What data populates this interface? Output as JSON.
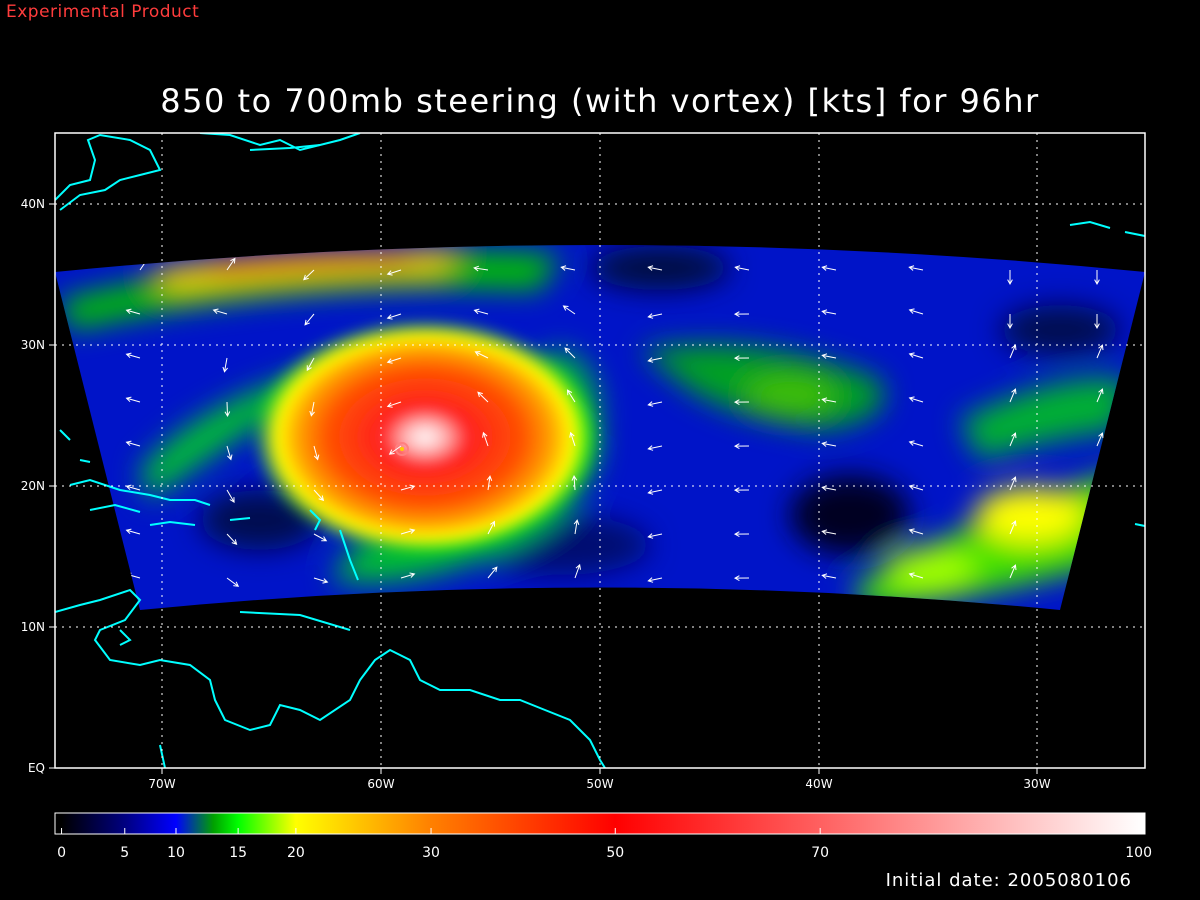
{
  "header": {
    "stamp": "Experimental Product"
  },
  "title": "850 to 700mb steering (with vortex) [kts] for 96hr",
  "footer": {
    "initial_date": "Initial date: 2005080106"
  },
  "map": {
    "lon_range": [
      -75,
      -25
    ],
    "lat_range": [
      0,
      45
    ],
    "lon_ticks": [
      {
        "value": -70,
        "label": "70W"
      },
      {
        "value": -60,
        "label": "60W"
      },
      {
        "value": -50,
        "label": "50W"
      },
      {
        "value": -40,
        "label": "40W"
      },
      {
        "value": -30,
        "label": "30W"
      }
    ],
    "lat_ticks": [
      {
        "value": 0,
        "label": "EQ"
      },
      {
        "value": 10,
        "label": "10N"
      },
      {
        "value": 20,
        "label": "20N"
      },
      {
        "value": 30,
        "label": "30N"
      },
      {
        "value": 40,
        "label": "40N"
      }
    ],
    "grid": true,
    "coastline_color": "#00ffff",
    "storm_center": {
      "lon": -59.2,
      "lat": 22.4
    }
  },
  "colorbar": {
    "min": 0,
    "max": 100,
    "labels": [
      0,
      5,
      10,
      15,
      20,
      30,
      50,
      70,
      100
    ],
    "stops": [
      {
        "v": 0,
        "c": "#000000"
      },
      {
        "v": 5,
        "c": "#000080"
      },
      {
        "v": 10,
        "c": "#0000ff"
      },
      {
        "v": 13,
        "c": "#00a000"
      },
      {
        "v": 15,
        "c": "#00ff00"
      },
      {
        "v": 20,
        "c": "#ffff00"
      },
      {
        "v": 30,
        "c": "#ff8000"
      },
      {
        "v": 50,
        "c": "#ff0000"
      },
      {
        "v": 70,
        "c": "#ff6060"
      },
      {
        "v": 100,
        "c": "#ffffff"
      }
    ]
  }
}
